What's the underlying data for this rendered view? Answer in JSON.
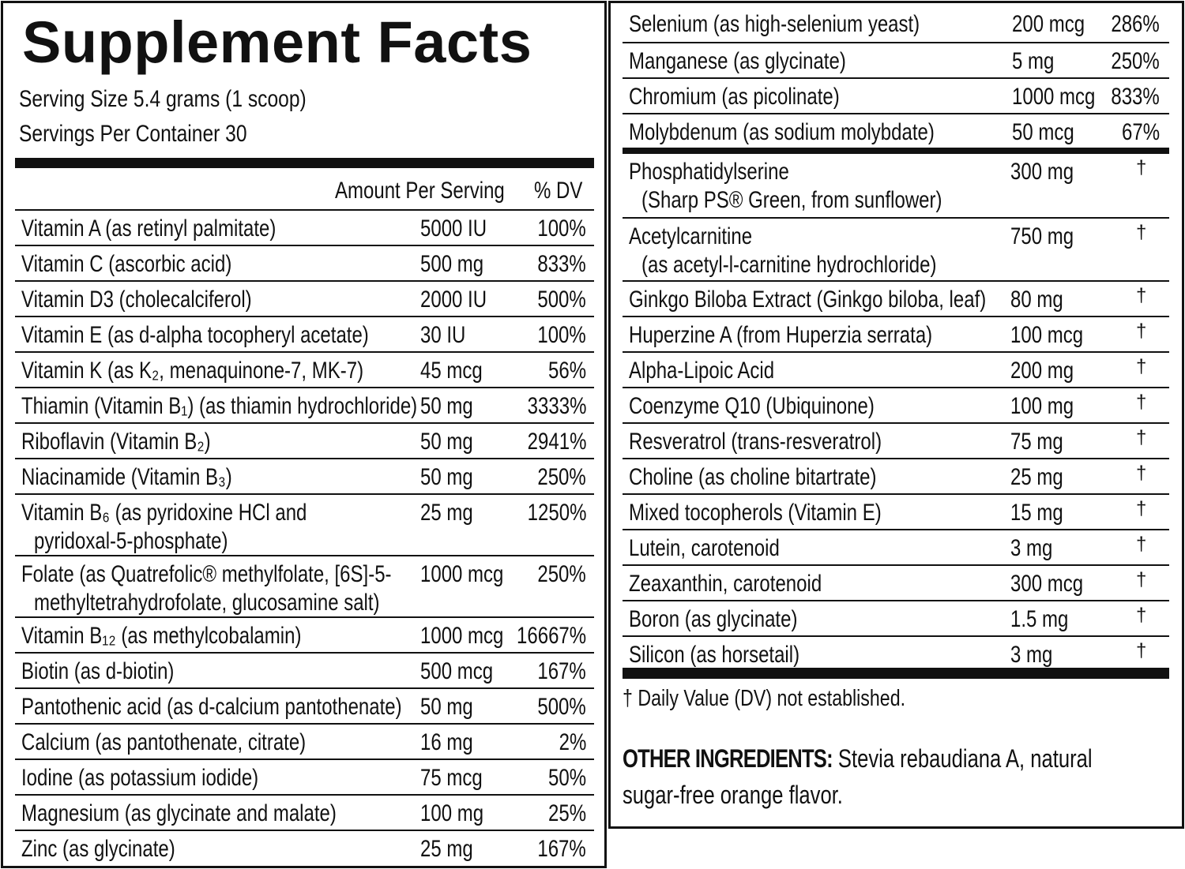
{
  "title": "Supplement Facts",
  "serving_size": "Serving Size 5.4 grams (1 scoop)",
  "servings_per_container": "Servings Per Container 30",
  "header": {
    "amount": "Amount Per Serving",
    "dv": "% DV"
  },
  "left_rows": [
    {
      "name": "Vitamin A (as retinyl palmitate)",
      "amount": "5000 IU",
      "dv": "100%"
    },
    {
      "name": "Vitamin C (ascorbic acid)",
      "amount": "500 mg",
      "dv": "833%"
    },
    {
      "name": "Vitamin D3 (cholecalciferol)",
      "amount": "2000 IU",
      "dv": "500%"
    },
    {
      "name": "Vitamin E (as d-alpha tocopheryl acetate)",
      "amount": "30 IU",
      "dv": "100%"
    },
    {
      "name": "Vitamin K (as K₂, menaquinone-7, MK-7)",
      "amount": "45 mcg",
      "dv": "56%"
    },
    {
      "name": "Thiamin (Vitamin B₁) (as thiamin hydrochloride)",
      "amount": "50 mg",
      "dv": "3333%"
    },
    {
      "name": "Riboflavin (Vitamin B₂)",
      "amount": "50 mg",
      "dv": "2941%"
    },
    {
      "name": "Niacinamide (Vitamin B₃)",
      "amount": "50 mg",
      "dv": "250%"
    },
    {
      "name": "Vitamin B₆ (as pyridoxine HCl and",
      "sub": "pyridoxal-5-phosphate)",
      "amount": "25 mg",
      "dv": "1250%"
    },
    {
      "name": "Folate (as Quatrefolic® methylfolate, [6S]-5-",
      "sub": "methyltetrahydrofolate, glucosamine salt)",
      "amount": "1000 mcg",
      "dv": "250%"
    },
    {
      "name": "Vitamin B₁₂ (as methylcobalamin)",
      "amount": "1000 mcg",
      "dv": "16667%"
    },
    {
      "name": "Biotin (as d-biotin)",
      "amount": "500 mcg",
      "dv": "167%"
    },
    {
      "name": "Pantothenic acid (as d-calcium pantothenate)",
      "amount": "50 mg",
      "dv": "500%"
    },
    {
      "name": "Calcium (as pantothenate, citrate)",
      "amount": "16 mg",
      "dv": "2%"
    },
    {
      "name": "Iodine (as potassium iodide)",
      "amount": "75 mcg",
      "dv": "50%"
    },
    {
      "name": "Magnesium (as glycinate and malate)",
      "amount": "100 mg",
      "dv": "25%"
    },
    {
      "name": "Zinc (as glycinate)",
      "amount": "25 mg",
      "dv": "167%"
    }
  ],
  "right_rows_top": [
    {
      "name": "Selenium (as high-selenium yeast)",
      "amount": "200 mcg",
      "dv": "286%"
    },
    {
      "name": "Manganese (as glycinate)",
      "amount": "5 mg",
      "dv": "250%"
    },
    {
      "name": "Chromium (as picolinate)",
      "amount": "1000 mcg",
      "dv": "833%"
    },
    {
      "name": "Molybdenum (as sodium molybdate)",
      "amount": "50 mcg",
      "dv": "67%"
    }
  ],
  "right_rows_bottom": [
    {
      "name": "Phosphatidylserine",
      "sub": "(Sharp PS® Green, from sunflower)",
      "amount": "300 mg",
      "dv": "†"
    },
    {
      "name": "Acetylcarnitine",
      "sub": "(as acetyl-l-carnitine hydrochloride)",
      "amount": "750 mg",
      "dv": "†"
    },
    {
      "name": "Ginkgo Biloba Extract (Ginkgo biloba, leaf)",
      "amount": "80 mg",
      "dv": "†"
    },
    {
      "name": "Huperzine A (from Huperzia serrata)",
      "amount": "100 mcg",
      "dv": "†"
    },
    {
      "name": "Alpha-Lipoic Acid",
      "amount": "200 mg",
      "dv": "†"
    },
    {
      "name": "Coenzyme Q10 (Ubiquinone)",
      "amount": "100 mg",
      "dv": "†"
    },
    {
      "name": "Resveratrol (trans-resveratrol)",
      "amount": "75 mg",
      "dv": "†"
    },
    {
      "name": "Choline (as choline bitartrate)",
      "amount": "25 mg",
      "dv": "†"
    },
    {
      "name": "Mixed tocopherols (Vitamin E)",
      "amount": "15 mg",
      "dv": "†"
    },
    {
      "name": "Lutein, carotenoid",
      "amount": "3 mg",
      "dv": "†"
    },
    {
      "name": "Zeaxanthin, carotenoid",
      "amount": "300 mcg",
      "dv": "†"
    },
    {
      "name": "Boron (as glycinate)",
      "amount": "1.5 mg",
      "dv": "†"
    },
    {
      "name": "Silicon (as horsetail)",
      "amount": "3 mg",
      "dv": "†"
    }
  ],
  "footnote": "† Daily Value (DV) not established.",
  "other_ingredients": {
    "label": "OTHER INGREDIENTS:",
    "text_line1": " Stevia rebaudiana A, natural",
    "text_line2": "sugar-free orange flavor."
  }
}
